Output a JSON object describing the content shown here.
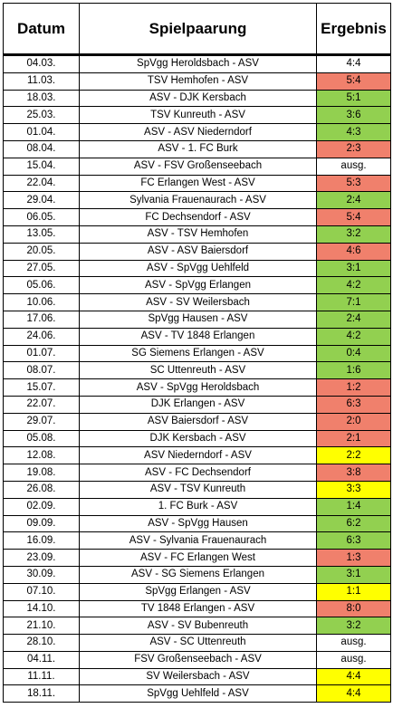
{
  "header": {
    "date": "Datum",
    "match": "Spielpaarung",
    "result": "Ergebnis"
  },
  "colors": {
    "red": "#f0806c",
    "green": "#92d050",
    "yellow": "#ffff00",
    "none": "#ffffff"
  },
  "rows": [
    {
      "date": "04.03.",
      "match": "SpVgg Heroldsbach - ASV",
      "result": "4:4",
      "status": "none"
    },
    {
      "date": "11.03.",
      "match": "TSV Hemhofen - ASV",
      "result": "5:4",
      "status": "red"
    },
    {
      "date": "18.03.",
      "match": "ASV - DJK Kersbach",
      "result": "5:1",
      "status": "green"
    },
    {
      "date": "25.03.",
      "match": "TSV Kunreuth - ASV",
      "result": "3:6",
      "status": "green"
    },
    {
      "date": "01.04.",
      "match": "ASV - ASV Niederndorf",
      "result": "4:3",
      "status": "green"
    },
    {
      "date": "08.04.",
      "match": "ASV - 1. FC Burk",
      "result": "2:3",
      "status": "red"
    },
    {
      "date": "15.04.",
      "match": "ASV - FSV Großenseebach",
      "result": "ausg.",
      "status": "none"
    },
    {
      "date": "22.04.",
      "match": "FC Erlangen West - ASV",
      "result": "5:3",
      "status": "red"
    },
    {
      "date": "29.04.",
      "match": "Sylvania Frauenaurach - ASV",
      "result": "2:4",
      "status": "green"
    },
    {
      "date": "06.05.",
      "match": "FC Dechsendorf - ASV",
      "result": "5:4",
      "status": "red"
    },
    {
      "date": "13.05.",
      "match": "ASV - TSV Hemhofen",
      "result": "3:2",
      "status": "green"
    },
    {
      "date": "20.05.",
      "match": "ASV - ASV Baiersdorf",
      "result": "4:6",
      "status": "red"
    },
    {
      "date": "27.05.",
      "match": "ASV - SpVgg Uehlfeld",
      "result": "3:1",
      "status": "green"
    },
    {
      "date": "05.06.",
      "match": "ASV - SpVgg Erlangen",
      "result": "4:2",
      "status": "green"
    },
    {
      "date": "10.06.",
      "match": "ASV - SV Weilersbach",
      "result": "7:1",
      "status": "green"
    },
    {
      "date": "17.06.",
      "match": "SpVgg Hausen - ASV",
      "result": "2:4",
      "status": "green"
    },
    {
      "date": "24.06.",
      "match": "ASV - TV 1848 Erlangen",
      "result": "4:2",
      "status": "green"
    },
    {
      "date": "01.07.",
      "match": "SG Siemens Erlangen - ASV",
      "result": "0:4",
      "status": "green"
    },
    {
      "date": "08.07.",
      "match": "SC Uttenreuth - ASV",
      "result": "1:6",
      "status": "green"
    },
    {
      "date": "15.07.",
      "match": "ASV - SpVgg Heroldsbach",
      "result": "1:2",
      "status": "red"
    },
    {
      "date": "22.07.",
      "match": "DJK Erlangen - ASV",
      "result": "6:3",
      "status": "red"
    },
    {
      "date": "29.07.",
      "match": "ASV Baiersdorf - ASV",
      "result": "2:0",
      "status": "red"
    },
    {
      "date": "05.08.",
      "match": "DJK Kersbach - ASV",
      "result": "2:1",
      "status": "red"
    },
    {
      "date": "12.08.",
      "match": "ASV Niederndorf - ASV",
      "result": "2:2",
      "status": "yellow"
    },
    {
      "date": "19.08.",
      "match": "ASV - FC Dechsendorf",
      "result": "3:8",
      "status": "red"
    },
    {
      "date": "26.08.",
      "match": "ASV - TSV Kunreuth",
      "result": "3:3",
      "status": "yellow"
    },
    {
      "date": "02.09.",
      "match": "1. FC Burk - ASV",
      "result": "1:4",
      "status": "green"
    },
    {
      "date": "09.09.",
      "match": "ASV - SpVgg Hausen",
      "result": "6:2",
      "status": "green"
    },
    {
      "date": "16.09.",
      "match": "ASV - Sylvania Frauenaurach",
      "result": "6:3",
      "status": "green"
    },
    {
      "date": "23.09.",
      "match": "ASV - FC Erlangen West",
      "result": "1:3",
      "status": "red"
    },
    {
      "date": "30.09.",
      "match": "ASV - SG Siemens Erlangen",
      "result": "3:1",
      "status": "green"
    },
    {
      "date": "07.10.",
      "match": "SpVgg Erlangen - ASV",
      "result": "1:1",
      "status": "yellow"
    },
    {
      "date": "14.10.",
      "match": "TV 1848 Erlangen - ASV",
      "result": "8:0",
      "status": "red"
    },
    {
      "date": "21.10.",
      "match": "ASV - SV Bubenreuth",
      "result": "3:2",
      "status": "green"
    },
    {
      "date": "28.10.",
      "match": "ASV - SC Uttenreuth",
      "result": "ausg.",
      "status": "none"
    },
    {
      "date": "04.11.",
      "match": "FSV Großenseebach - ASV",
      "result": "ausg.",
      "status": "none"
    },
    {
      "date": "11.11.",
      "match": "SV Weilersbach - ASV",
      "result": "4:4",
      "status": "yellow"
    },
    {
      "date": "18.11.",
      "match": "SpVgg Uehlfeld - ASV",
      "result": "4:4",
      "status": "yellow"
    }
  ]
}
